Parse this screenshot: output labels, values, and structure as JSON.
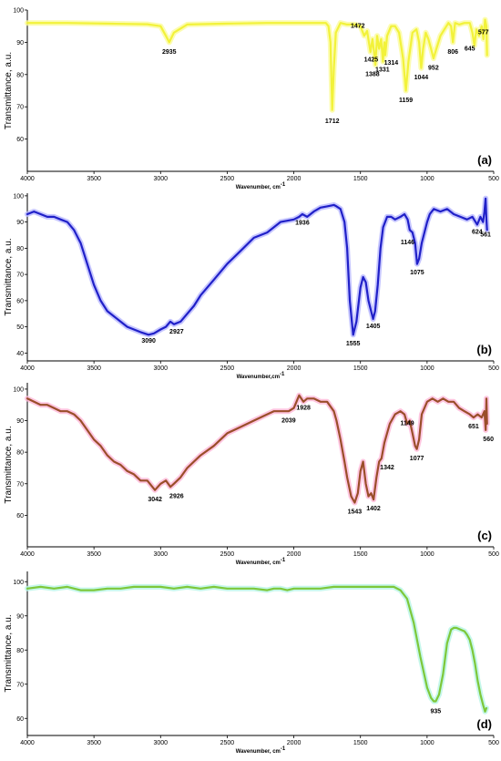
{
  "chart_data": [
    {
      "type": "line",
      "panel_label": "(a)",
      "xlabel": "Wavenumber, cm",
      "xlabel_sup": "-1",
      "ylabel": "Transmittance, a.u.",
      "xlim": [
        4000,
        500
      ],
      "ylim": [
        50,
        100
      ],
      "xticks": [
        4000,
        3500,
        3000,
        2500,
        2000,
        1500,
        1000,
        500
      ],
      "yticks": [
        60,
        70,
        80,
        90,
        100
      ],
      "color": "#f2f23a",
      "glow": "#fbfb9e",
      "series": [
        {
          "x": [
            4000,
            3700,
            3400,
            3100,
            3000,
            2960,
            2935,
            2900,
            2800,
            2500,
            2200,
            2000,
            1800,
            1760,
            1740,
            1725,
            1712,
            1700,
            1685,
            1650,
            1600,
            1540,
            1500,
            1472,
            1450,
            1425,
            1410,
            1395,
            1388,
            1375,
            1360,
            1345,
            1331,
            1320,
            1314,
            1300,
            1270,
            1240,
            1210,
            1180,
            1159,
            1140,
            1110,
            1080,
            1060,
            1044,
            1030,
            1010,
            990,
            970,
            952,
            930,
            900,
            870,
            840,
            820,
            806,
            790,
            760,
            720,
            680,
            660,
            645,
            630,
            610,
            590,
            577,
            565,
            555,
            550
          ],
          "y": [
            96,
            96,
            95.8,
            95.6,
            95,
            92,
            90,
            93,
            95.5,
            95.8,
            96,
            96,
            96,
            96,
            95,
            90,
            69,
            82,
            93,
            96,
            95.5,
            95.5,
            95,
            92,
            93.5,
            87,
            91,
            86,
            83,
            92,
            88,
            91,
            84,
            90,
            86,
            92,
            95,
            95,
            93,
            85,
            75,
            84,
            93,
            94,
            90,
            82,
            88,
            93,
            91,
            88,
            85,
            88,
            92,
            94,
            96,
            95,
            90,
            96,
            95.5,
            96,
            96,
            93,
            89,
            94,
            92,
            95,
            91,
            97,
            95,
            86
          ]
        }
      ],
      "annotations": [
        {
          "text": "2935",
          "x": 2935,
          "y": 86.5
        },
        {
          "text": "1712",
          "x": 1712,
          "y": 65
        },
        {
          "text": "1472",
          "x": 1520,
          "y": 94.5
        },
        {
          "text": "1425",
          "x": 1420,
          "y": 84
        },
        {
          "text": "1388",
          "x": 1410,
          "y": 79.5
        },
        {
          "text": "1331",
          "x": 1335,
          "y": 81
        },
        {
          "text": "1314",
          "x": 1270,
          "y": 83
        },
        {
          "text": "1159",
          "x": 1159,
          "y": 71.5
        },
        {
          "text": "1044",
          "x": 1044,
          "y": 78.5
        },
        {
          "text": "952",
          "x": 952,
          "y": 81.5
        },
        {
          "text": "806",
          "x": 806,
          "y": 86.5
        },
        {
          "text": "645",
          "x": 680,
          "y": 87.5
        },
        {
          "text": "577",
          "x": 577,
          "y": 92.5
        }
      ]
    },
    {
      "type": "line",
      "panel_label": "(b)",
      "xlabel": "Wavenumber,cm",
      "xlabel_sup": "-1",
      "ylabel": "Transmittance, a.u.",
      "xlim": [
        4000,
        500
      ],
      "ylim": [
        37,
        101
      ],
      "xticks": [
        4000,
        3500,
        3000,
        2500,
        2000,
        1500,
        1000,
        500
      ],
      "yticks": [
        40,
        50,
        60,
        70,
        80,
        90,
        100
      ],
      "color": "#2020c8",
      "glow": "#b8b8ff",
      "series": [
        {
          "x": [
            4000,
            3950,
            3900,
            3850,
            3800,
            3750,
            3700,
            3650,
            3600,
            3550,
            3500,
            3450,
            3400,
            3350,
            3300,
            3250,
            3200,
            3150,
            3090,
            3050,
            3000,
            2960,
            2927,
            2900,
            2850,
            2800,
            2750,
            2700,
            2600,
            2500,
            2400,
            2300,
            2200,
            2150,
            2100,
            2050,
            2000,
            1960,
            1936,
            1900,
            1850,
            1800,
            1750,
            1700,
            1680,
            1650,
            1620,
            1600,
            1580,
            1555,
            1530,
            1500,
            1480,
            1460,
            1440,
            1420,
            1405,
            1390,
            1370,
            1350,
            1330,
            1300,
            1270,
            1240,
            1200,
            1170,
            1146,
            1130,
            1110,
            1090,
            1075,
            1060,
            1040,
            1000,
            980,
            950,
            900,
            850,
            800,
            750,
            700,
            660,
            624,
            600,
            580,
            570,
            561,
            555,
            550
          ],
          "y": [
            93,
            94,
            93,
            92,
            92,
            91,
            90,
            87,
            82,
            74,
            66,
            60,
            56,
            54,
            52,
            50,
            49,
            48,
            47,
            47.5,
            49,
            50,
            52,
            51,
            52,
            55,
            58,
            62,
            68,
            74,
            79,
            84,
            86,
            88,
            90,
            90.5,
            91,
            92,
            93,
            92,
            94,
            95.5,
            96,
            96.5,
            96,
            95,
            90,
            80,
            60,
            47,
            52,
            65,
            69,
            67,
            60,
            56,
            53,
            56,
            66,
            80,
            88,
            92,
            92,
            91,
            92,
            93,
            91,
            87,
            86,
            82,
            74,
            76,
            82,
            90,
            93,
            95,
            94,
            95,
            93,
            92,
            91,
            92,
            89,
            92,
            90,
            94,
            99,
            91,
            87
          ]
        }
      ],
      "annotations": [
        {
          "text": "3090",
          "x": 3090,
          "y": 44
        },
        {
          "text": "2927",
          "x": 2880,
          "y": 47.5
        },
        {
          "text": "1936",
          "x": 1936,
          "y": 89
        },
        {
          "text": "1555",
          "x": 1555,
          "y": 43
        },
        {
          "text": "1405",
          "x": 1405,
          "y": 49.5
        },
        {
          "text": "1146",
          "x": 1146,
          "y": 81.5
        },
        {
          "text": "1075",
          "x": 1075,
          "y": 70
        },
        {
          "text": "624",
          "x": 624,
          "y": 85.5
        },
        {
          "text": "561",
          "x": 561,
          "y": 84.5
        }
      ]
    },
    {
      "type": "line",
      "panel_label": "(c)",
      "xlabel": "Wavenumber, cm",
      "xlabel_sup": "-1",
      "ylabel": "Transmittance, a.u.",
      "xlim": [
        4000,
        500
      ],
      "ylim": [
        50,
        102
      ],
      "xticks": [
        4000,
        3500,
        3000,
        2500,
        2000,
        1500,
        1000,
        500
      ],
      "yticks": [
        60,
        70,
        80,
        90,
        100
      ],
      "color": "#9a4e2a",
      "glow": "#ffb8d8",
      "series": [
        {
          "x": [
            4000,
            3950,
            3900,
            3850,
            3800,
            3750,
            3700,
            3650,
            3600,
            3550,
            3500,
            3450,
            3400,
            3350,
            3300,
            3250,
            3200,
            3150,
            3100,
            3042,
            3000,
            2960,
            2926,
            2900,
            2850,
            2800,
            2700,
            2600,
            2500,
            2400,
            2300,
            2200,
            2150,
            2100,
            2039,
            2000,
            1960,
            1928,
            1900,
            1850,
            1800,
            1750,
            1700,
            1680,
            1650,
            1620,
            1600,
            1570,
            1543,
            1520,
            1500,
            1480,
            1460,
            1440,
            1420,
            1402,
            1380,
            1360,
            1342,
            1320,
            1280,
            1240,
            1200,
            1170,
            1149,
            1130,
            1110,
            1090,
            1077,
            1060,
            1040,
            1000,
            960,
            920,
            880,
            840,
            800,
            760,
            720,
            680,
            651,
            620,
            590,
            570,
            560,
            555,
            550
          ],
          "y": [
            97,
            96,
            95,
            95,
            94,
            93,
            93,
            92,
            90,
            87,
            84,
            82,
            79,
            77,
            76,
            74,
            73,
            71,
            71,
            68,
            70,
            71,
            69,
            70,
            72,
            75,
            79,
            82,
            86,
            88,
            90,
            92,
            93,
            93,
            93,
            94,
            98,
            96,
            97,
            97,
            96,
            96,
            93,
            90,
            84,
            77,
            72,
            66,
            64,
            67,
            74,
            77,
            70,
            66,
            67,
            65,
            72,
            77,
            78,
            83,
            89,
            92,
            93,
            92,
            89,
            90,
            86,
            82,
            81,
            84,
            92,
            96,
            97,
            96,
            97,
            96,
            96,
            94,
            93,
            92,
            91,
            92,
            91,
            93,
            87,
            97,
            89
          ]
        }
      ],
      "annotations": [
        {
          "text": "3042",
          "x": 3042,
          "y": 64.5
        },
        {
          "text": "2926",
          "x": 2880,
          "y": 65.5
        },
        {
          "text": "2039",
          "x": 2039,
          "y": 89.5
        },
        {
          "text": "1928",
          "x": 1928,
          "y": 93.5
        },
        {
          "text": "1543",
          "x": 1543,
          "y": 60.5
        },
        {
          "text": "1402",
          "x": 1402,
          "y": 61.5
        },
        {
          "text": "1342",
          "x": 1300,
          "y": 74.5
        },
        {
          "text": "1149",
          "x": 1149,
          "y": 88.5
        },
        {
          "text": "1077",
          "x": 1077,
          "y": 77.5
        },
        {
          "text": "651",
          "x": 651,
          "y": 87.5
        },
        {
          "text": "560",
          "x": 540,
          "y": 83.5
        }
      ]
    },
    {
      "type": "line",
      "panel_label": "(d)",
      "xlabel": "Wavenumber, cm",
      "xlabel_sup": "-1",
      "ylabel": "Transmittance, a.u.",
      "xlim": [
        4000,
        500
      ],
      "ylim": [
        55,
        103
      ],
      "xticks": [
        4000,
        3500,
        3000,
        2500,
        2000,
        1500,
        1000,
        500
      ],
      "yticks": [
        60,
        70,
        80,
        90,
        100
      ],
      "color": "#7dc83a",
      "glow": "#b8f5e6",
      "series": [
        {
          "x": [
            4000,
            3900,
            3800,
            3700,
            3600,
            3500,
            3400,
            3300,
            3200,
            3100,
            3000,
            2900,
            2800,
            2700,
            2600,
            2500,
            2400,
            2300,
            2200,
            2150,
            2100,
            2050,
            2000,
            1900,
            1800,
            1700,
            1600,
            1500,
            1400,
            1300,
            1250,
            1200,
            1150,
            1100,
            1050,
            1000,
            970,
            950,
            935,
            910,
            880,
            850,
            820,
            800,
            780,
            750,
            720,
            700,
            680,
            660,
            640,
            620,
            600,
            580,
            565,
            555
          ],
          "y": [
            98,
            98.5,
            98,
            98.5,
            97.5,
            97.5,
            98,
            98,
            98.5,
            98.5,
            98.5,
            98,
            98.5,
            98,
            98.5,
            98,
            98,
            98,
            97.5,
            98,
            98,
            97.5,
            98,
            98,
            98,
            98.5,
            98.5,
            98.5,
            98.5,
            98.5,
            98.5,
            97.5,
            95,
            88,
            78,
            69,
            66,
            65,
            65,
            67,
            73,
            82,
            86,
            86.5,
            86.5,
            86,
            85.5,
            84.5,
            83,
            80,
            76,
            71,
            67,
            64,
            62,
            63
          ]
        }
      ],
      "annotations": [
        {
          "text": "935",
          "x": 935,
          "y": 61.5
        }
      ]
    }
  ]
}
